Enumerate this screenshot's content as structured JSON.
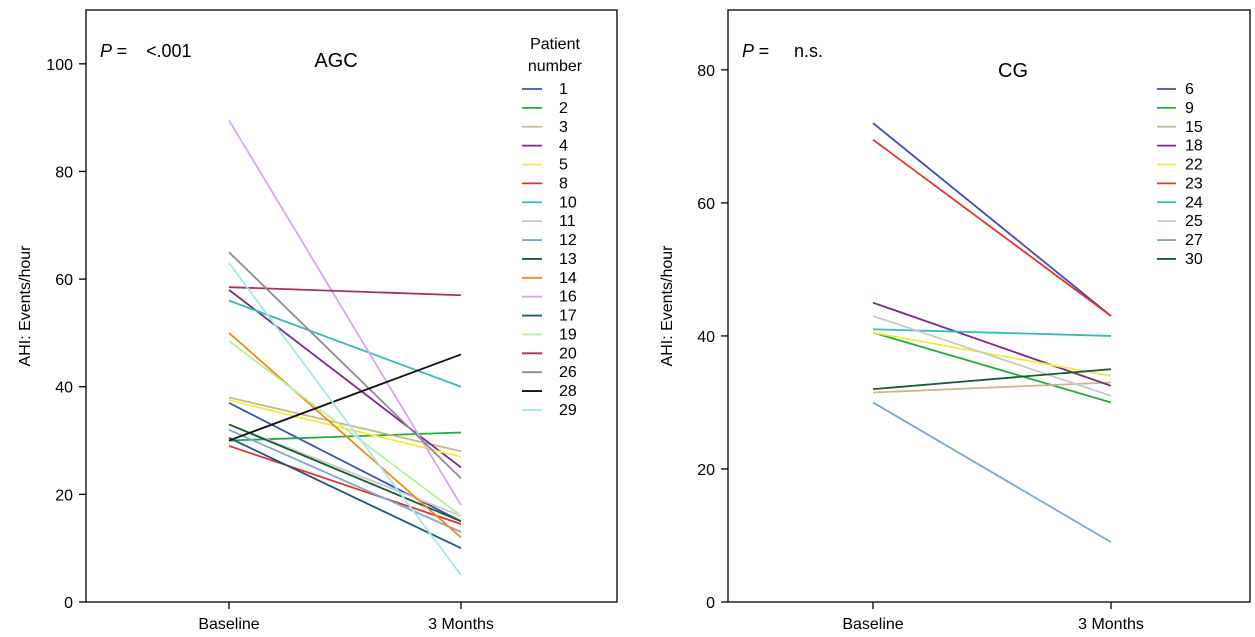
{
  "chart_data": [
    {
      "type": "line",
      "title": "AGC",
      "annotation": {
        "prefix": "P =",
        "value": "<.001"
      },
      "xlabel": "",
      "ylabel": "AHI: Events/hour",
      "categories": [
        "Baseline",
        "3 Months"
      ],
      "ylim": [
        0,
        110
      ],
      "yticks": [
        0,
        20,
        40,
        60,
        80,
        100
      ],
      "grid": false,
      "legend": {
        "title_line1": "Patient",
        "title_line2": "number",
        "placement": "top-right"
      },
      "series": [
        {
          "name": "1",
          "color": "#3b4fb8",
          "values": [
            37.0,
            15.0
          ]
        },
        {
          "name": "2",
          "color": "#1fae3c",
          "values": [
            30.0,
            31.5
          ]
        },
        {
          "name": "3",
          "color": "#c8b88a",
          "values": [
            38.0,
            28.0
          ]
        },
        {
          "name": "4",
          "color": "#7a2a8a",
          "values": [
            58.0,
            25.0
          ]
        },
        {
          "name": "5",
          "color": "#f2ec3a",
          "values": [
            37.5,
            27.0
          ]
        },
        {
          "name": "8",
          "color": "#e8312a",
          "values": [
            29.0,
            14.5
          ]
        },
        {
          "name": "10",
          "color": "#30bcbc",
          "values": [
            56.0,
            40.0
          ]
        },
        {
          "name": "11",
          "color": "#c8c8c8",
          "values": [
            33.0,
            16.0
          ]
        },
        {
          "name": "12",
          "color": "#7aa6d8",
          "values": [
            32.0,
            13.0
          ]
        },
        {
          "name": "13",
          "color": "#1b5c34",
          "values": [
            33.0,
            15.0
          ]
        },
        {
          "name": "14",
          "color": "#f08a12",
          "values": [
            50.0,
            12.0
          ]
        },
        {
          "name": "16",
          "color": "#d9a6ec",
          "values": [
            89.5,
            18.0
          ]
        },
        {
          "name": "17",
          "color": "#1e5a78",
          "values": [
            30.5,
            10.0
          ]
        },
        {
          "name": "19",
          "color": "#b6f29a",
          "values": [
            48.5,
            16.0
          ]
        },
        {
          "name": "20",
          "color": "#a83068",
          "values": [
            58.5,
            57.0
          ]
        },
        {
          "name": "26",
          "color": "#8c8c8c",
          "values": [
            65.0,
            23.0
          ]
        },
        {
          "name": "28",
          "color": "#111111",
          "values": [
            30.0,
            46.0
          ]
        },
        {
          "name": "29",
          "color": "#a6e6ea",
          "values": [
            63.0,
            5.0
          ]
        }
      ]
    },
    {
      "type": "line",
      "title": "CG",
      "annotation": {
        "prefix": "P =",
        "value": "n.s."
      },
      "xlabel": "",
      "ylabel": "AHI: Events/hour",
      "categories": [
        "Baseline",
        "3 Months"
      ],
      "ylim": [
        0,
        89
      ],
      "yticks": [
        0,
        20,
        40,
        60,
        80
      ],
      "grid": false,
      "legend": {
        "placement": "top-right"
      },
      "series": [
        {
          "name": "6",
          "color": "#3b4fb8",
          "values": [
            72.0,
            43.0
          ]
        },
        {
          "name": "9",
          "color": "#1fae3c",
          "values": [
            40.5,
            30.0
          ]
        },
        {
          "name": "15",
          "color": "#c8b88a",
          "values": [
            31.5,
            33.0
          ]
        },
        {
          "name": "18",
          "color": "#7a2a8a",
          "values": [
            45.0,
            32.5
          ]
        },
        {
          "name": "22",
          "color": "#f2ec3a",
          "values": [
            40.5,
            34.0
          ]
        },
        {
          "name": "23",
          "color": "#e8312a",
          "values": [
            69.5,
            43.0
          ]
        },
        {
          "name": "24",
          "color": "#30bcbc",
          "values": [
            41.0,
            40.0
          ]
        },
        {
          "name": "25",
          "color": "#c8c8c8",
          "values": [
            43.0,
            31.0
          ]
        },
        {
          "name": "27",
          "color": "#7aa6d8",
          "values": [
            30.0,
            9.0
          ]
        },
        {
          "name": "30",
          "color": "#1b5c34",
          "values": [
            32.0,
            35.0
          ]
        }
      ]
    }
  ]
}
